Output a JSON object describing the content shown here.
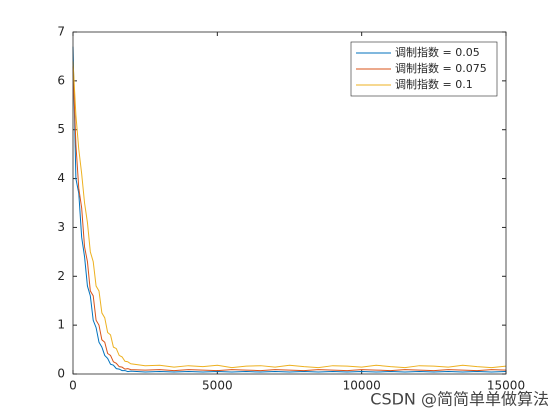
{
  "chart_data": {
    "type": "line",
    "x": [
      0,
      100,
      200,
      300,
      400,
      500,
      600,
      700,
      800,
      900,
      1000,
      1100,
      1200,
      1300,
      1400,
      1500,
      1600,
      1700,
      1800,
      1900,
      2000,
      2500,
      3000,
      3500,
      4000,
      4500,
      5000,
      5500,
      6000,
      6500,
      7000,
      7500,
      8000,
      8500,
      9000,
      9500,
      10000,
      10500,
      11000,
      11500,
      12000,
      12500,
      13000,
      13500,
      14000,
      14500,
      15000
    ],
    "series": [
      {
        "name": "调制指数 = 0.05",
        "color": "#0072bd",
        "values": [
          6.7,
          4.0,
          3.7,
          2.8,
          2.4,
          1.8,
          1.6,
          1.1,
          0.95,
          0.65,
          0.55,
          0.38,
          0.32,
          0.2,
          0.18,
          0.11,
          0.1,
          0.07,
          0.07,
          0.05,
          0.06,
          0.04,
          0.05,
          0.04,
          0.05,
          0.04,
          0.05,
          0.04,
          0.05,
          0.04,
          0.05,
          0.04,
          0.05,
          0.04,
          0.05,
          0.04,
          0.05,
          0.04,
          0.05,
          0.04,
          0.05,
          0.04,
          0.05,
          0.04,
          0.05,
          0.04,
          0.05
        ]
      },
      {
        "name": "调制指数 = 0.075",
        "color": "#d95319",
        "values": [
          6.3,
          4.7,
          3.8,
          3.4,
          2.6,
          2.3,
          1.7,
          1.6,
          1.1,
          1.0,
          0.7,
          0.65,
          0.42,
          0.38,
          0.25,
          0.22,
          0.15,
          0.14,
          0.1,
          0.11,
          0.09,
          0.08,
          0.09,
          0.07,
          0.09,
          0.08,
          0.07,
          0.09,
          0.08,
          0.07,
          0.09,
          0.08,
          0.07,
          0.09,
          0.08,
          0.07,
          0.09,
          0.08,
          0.07,
          0.09,
          0.08,
          0.07,
          0.09,
          0.08,
          0.07,
          0.09,
          0.08
        ]
      },
      {
        "name": "调制指数 = 0.1",
        "color": "#edb120",
        "values": [
          6.4,
          5.3,
          4.6,
          4.1,
          3.5,
          3.1,
          2.5,
          2.3,
          1.8,
          1.7,
          1.25,
          1.15,
          0.85,
          0.8,
          0.55,
          0.52,
          0.38,
          0.35,
          0.26,
          0.25,
          0.21,
          0.17,
          0.18,
          0.14,
          0.17,
          0.15,
          0.18,
          0.13,
          0.16,
          0.17,
          0.14,
          0.18,
          0.15,
          0.13,
          0.17,
          0.16,
          0.14,
          0.18,
          0.15,
          0.13,
          0.17,
          0.16,
          0.14,
          0.18,
          0.15,
          0.13,
          0.16
        ]
      }
    ],
    "xlim": [
      0,
      15000
    ],
    "xticks": [
      0,
      5000,
      10000,
      15000
    ],
    "ylim": [
      0,
      7
    ],
    "yticks": [
      0,
      1,
      2,
      3,
      4,
      5,
      6,
      7
    ],
    "grid": false,
    "legend": "northeast",
    "watermark": "CSDN @简简单单做算法"
  }
}
